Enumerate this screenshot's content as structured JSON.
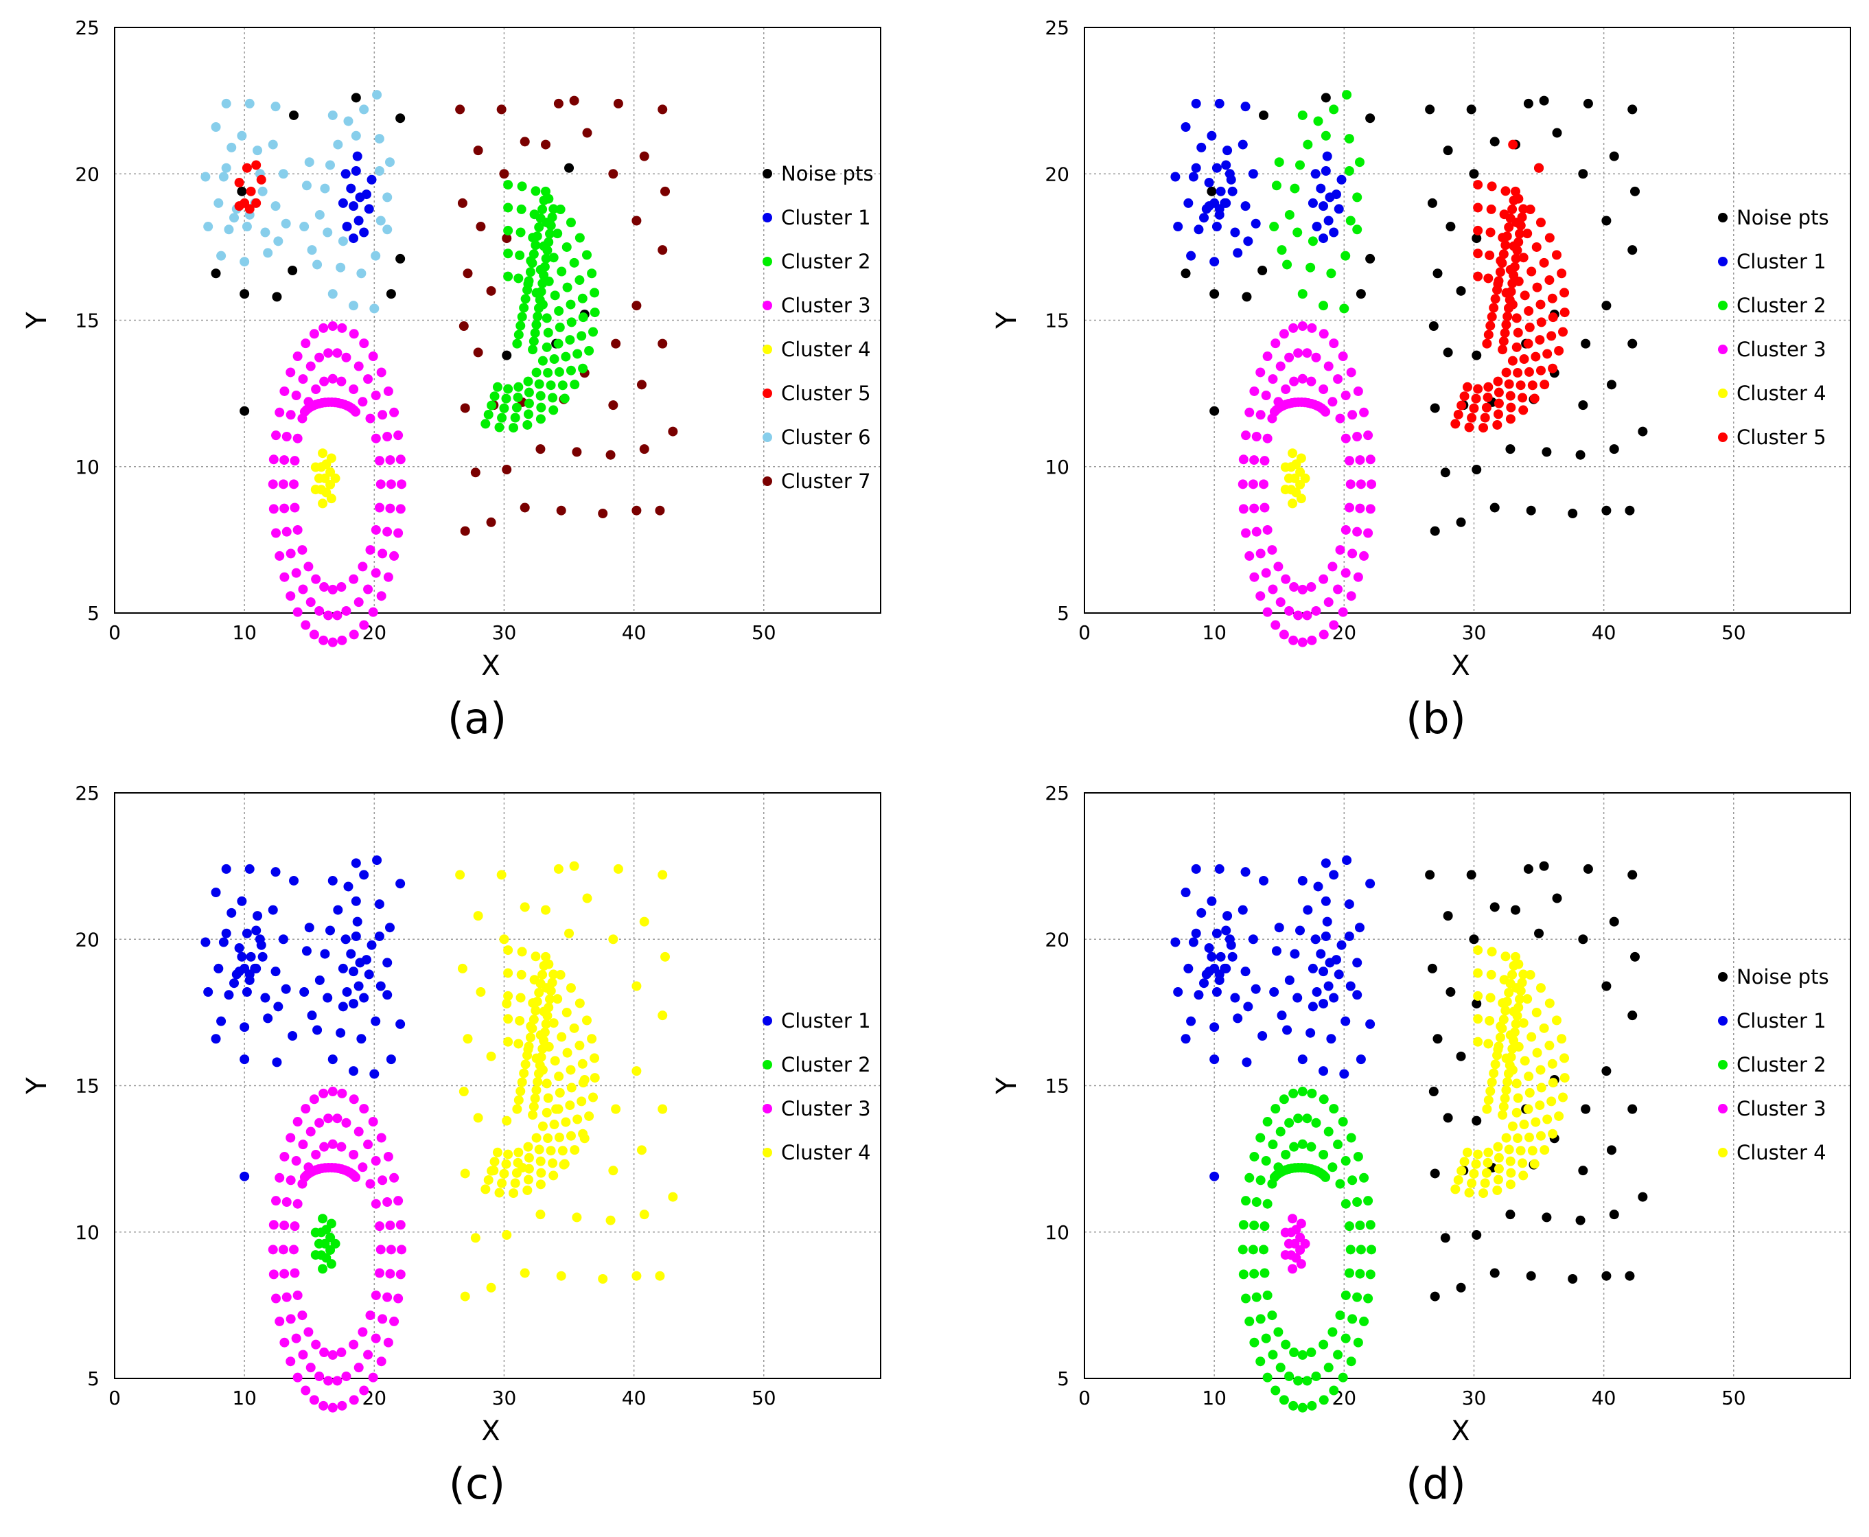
{
  "chart_data": [
    {
      "type": "scatter",
      "panel_label": "(a)",
      "xlabel": "X",
      "ylabel": "Y",
      "xlim": [
        0,
        59
      ],
      "ylim": [
        5,
        25
      ],
      "xticks": [
        "0",
        "10",
        "20",
        "30",
        "40",
        "50"
      ],
      "yticks": [
        "5",
        "10",
        "15",
        "20",
        "25"
      ],
      "grid": true,
      "legend_position": "right",
      "series": [
        {
          "name": "Noise pts",
          "color": "#000000"
        },
        {
          "name": "Cluster  1",
          "color": "#0000ee"
        },
        {
          "name": "Cluster  2",
          "color": "#00ee00"
        },
        {
          "name": "Cluster  3",
          "color": "#ff00ff"
        },
        {
          "name": "Cluster  4",
          "color": "#ffff00"
        },
        {
          "name": "Cluster  5",
          "color": "#ff0000"
        },
        {
          "name": "Cluster  6",
          "color": "#87ceeb"
        },
        {
          "name": "Cluster  7",
          "color": "#7a0000"
        }
      ],
      "region_map": {
        "LN": 0,
        "RN": 0,
        "LBL": 6,
        "LBC": 1,
        "LBR": 6,
        "LRED": 5,
        "RIGHT": 7,
        "MOON": 2,
        "RING": 3,
        "CORE": 4
      }
    },
    {
      "type": "scatter",
      "panel_label": "(b)",
      "xlabel": "X",
      "ylabel": "Y",
      "xlim": [
        0,
        59
      ],
      "ylim": [
        5,
        25
      ],
      "xticks": [
        "0",
        "10",
        "20",
        "30",
        "40",
        "50"
      ],
      "yticks": [
        "5",
        "10",
        "15",
        "20",
        "25"
      ],
      "grid": true,
      "legend_position": "right",
      "series": [
        {
          "name": "Noise pts",
          "color": "#000000"
        },
        {
          "name": "Cluster  1",
          "color": "#0000ee"
        },
        {
          "name": "Cluster  2",
          "color": "#00ee00"
        },
        {
          "name": "Cluster  3",
          "color": "#ff00ff"
        },
        {
          "name": "Cluster  4",
          "color": "#ffff00"
        },
        {
          "name": "Cluster  5",
          "color": "#ff0000"
        }
      ],
      "region_map": {
        "LN": 0,
        "RN": 0,
        "LBL": 1,
        "LBC": 1,
        "LBR": 2,
        "LRED": 1,
        "RIGHT": 0,
        "MOON": 5,
        "RING": 3,
        "CORE": 4
      },
      "extra_points": [
        {
          "x": 33.0,
          "y": 21.0,
          "series": 5
        },
        {
          "x": 35.0,
          "y": 20.2,
          "series": 5
        }
      ]
    },
    {
      "type": "scatter",
      "panel_label": "(c)",
      "xlabel": "X",
      "ylabel": "Y",
      "xlim": [
        0,
        59
      ],
      "ylim": [
        5,
        25
      ],
      "xticks": [
        "0",
        "10",
        "20",
        "30",
        "40",
        "50"
      ],
      "yticks": [
        "5",
        "10",
        "15",
        "20",
        "25"
      ],
      "grid": true,
      "legend_position": "right",
      "series": [
        {
          "name": "Cluster  1",
          "color": "#0000ee"
        },
        {
          "name": "Cluster  2",
          "color": "#00ee00"
        },
        {
          "name": "Cluster  3",
          "color": "#ff00ff"
        },
        {
          "name": "Cluster  4",
          "color": "#ffff00"
        }
      ],
      "region_map": {
        "LN": 0,
        "RN": 3,
        "LBL": 0,
        "LBC": 0,
        "LBR": 0,
        "LRED": 0,
        "RIGHT": 3,
        "MOON": 3,
        "RING": 2,
        "CORE": 1
      }
    },
    {
      "type": "scatter",
      "panel_label": "(d)",
      "xlabel": "X",
      "ylabel": "Y",
      "xlim": [
        0,
        59
      ],
      "ylim": [
        5,
        25
      ],
      "xticks": [
        "0",
        "10",
        "20",
        "30",
        "40",
        "50"
      ],
      "yticks": [
        "5",
        "10",
        "15",
        "20",
        "25"
      ],
      "grid": true,
      "legend_position": "right",
      "series": [
        {
          "name": "Noise pts",
          "color": "#000000"
        },
        {
          "name": "Cluster  1",
          "color": "#0000ee"
        },
        {
          "name": "Cluster  2",
          "color": "#00ee00"
        },
        {
          "name": "Cluster  3",
          "color": "#ff00ff"
        },
        {
          "name": "Cluster  4",
          "color": "#ffff00"
        }
      ],
      "region_map": {
        "LN": 1,
        "RN": 0,
        "LBL": 1,
        "LBC": 1,
        "LBR": 1,
        "LRED": 1,
        "RIGHT": 0,
        "MOON": 4,
        "RING": 2,
        "CORE": 3
      }
    }
  ],
  "points": {
    "LN": [
      [
        13.8,
        22.0
      ],
      [
        18.6,
        22.6
      ],
      [
        22.0,
        21.9
      ],
      [
        9.8,
        19.4
      ],
      [
        7.8,
        16.6
      ],
      [
        10.0,
        15.9
      ],
      [
        12.5,
        15.8
      ],
      [
        13.7,
        16.7
      ],
      [
        21.3,
        15.9
      ],
      [
        22.0,
        17.1
      ],
      [
        10.0,
        11.9
      ]
    ],
    "RN": [
      [
        35.0,
        20.2
      ],
      [
        36.2,
        15.2
      ],
      [
        34.0,
        14.2
      ],
      [
        30.2,
        13.8
      ]
    ],
    "LBL": [
      [
        8.6,
        22.4
      ],
      [
        10.4,
        22.4
      ],
      [
        12.4,
        22.3
      ],
      [
        7.8,
        21.6
      ],
      [
        9.0,
        20.9
      ],
      [
        11.0,
        20.8
      ],
      [
        12.2,
        21.0
      ],
      [
        7.0,
        19.9
      ],
      [
        8.4,
        19.9
      ],
      [
        11.2,
        20.0
      ],
      [
        13.0,
        20.0
      ],
      [
        8.0,
        19.0
      ],
      [
        9.4,
        18.8
      ],
      [
        10.8,
        19.0
      ],
      [
        12.4,
        18.9
      ],
      [
        7.2,
        18.2
      ],
      [
        8.8,
        18.1
      ],
      [
        10.2,
        18.2
      ],
      [
        11.6,
        18.0
      ],
      [
        13.2,
        18.3
      ],
      [
        8.2,
        17.2
      ],
      [
        10.0,
        17.0
      ],
      [
        11.8,
        17.3
      ],
      [
        12.6,
        17.7
      ],
      [
        9.2,
        18.5
      ],
      [
        11.4,
        19.4
      ],
      [
        10.4,
        18.6
      ],
      [
        8.6,
        20.2
      ],
      [
        9.8,
        21.3
      ]
    ],
    "LBC": [
      [
        17.8,
        20.0
      ],
      [
        18.6,
        20.1
      ],
      [
        19.8,
        19.8
      ],
      [
        18.2,
        19.5
      ],
      [
        19.4,
        19.3
      ],
      [
        17.6,
        19.0
      ],
      [
        18.4,
        18.9
      ],
      [
        19.6,
        18.8
      ],
      [
        18.8,
        18.4
      ],
      [
        17.9,
        18.2
      ],
      [
        19.2,
        18.0
      ],
      [
        18.4,
        17.8
      ],
      [
        18.9,
        19.2
      ],
      [
        18.7,
        20.6
      ]
    ],
    "LBR": [
      [
        16.8,
        22.0
      ],
      [
        18.0,
        21.8
      ],
      [
        19.2,
        22.2
      ],
      [
        20.2,
        22.7
      ],
      [
        17.2,
        21.0
      ],
      [
        18.6,
        21.3
      ],
      [
        20.4,
        21.2
      ],
      [
        15.0,
        20.4
      ],
      [
        16.6,
        20.3
      ],
      [
        20.4,
        20.1
      ],
      [
        21.2,
        20.4
      ],
      [
        14.8,
        19.6
      ],
      [
        16.2,
        19.5
      ],
      [
        21.0,
        19.2
      ],
      [
        15.8,
        18.6
      ],
      [
        20.5,
        18.4
      ],
      [
        14.6,
        18.2
      ],
      [
        16.4,
        18.0
      ],
      [
        21.0,
        18.1
      ],
      [
        15.6,
        16.9
      ],
      [
        17.4,
        16.8
      ],
      [
        19.0,
        16.6
      ],
      [
        20.1,
        17.2
      ],
      [
        16.8,
        15.9
      ],
      [
        18.4,
        15.5
      ],
      [
        20.0,
        15.4
      ],
      [
        17.6,
        17.7
      ],
      [
        15.2,
        17.4
      ]
    ],
    "LRED": [
      [
        10.2,
        20.2
      ],
      [
        10.9,
        20.3
      ],
      [
        9.6,
        19.7
      ],
      [
        11.3,
        19.8
      ],
      [
        10.5,
        19.4
      ],
      [
        10.0,
        19.0
      ],
      [
        10.9,
        19.0
      ],
      [
        9.6,
        18.9
      ],
      [
        10.4,
        18.8
      ]
    ],
    "RIGHT": [
      [
        26.6,
        22.2
      ],
      [
        29.8,
        22.2
      ],
      [
        34.2,
        22.4
      ],
      [
        35.4,
        22.5
      ],
      [
        38.8,
        22.4
      ],
      [
        42.2,
        22.2
      ],
      [
        36.4,
        21.4
      ],
      [
        28.0,
        20.8
      ],
      [
        31.6,
        21.1
      ],
      [
        33.2,
        21.0
      ],
      [
        40.8,
        20.6
      ],
      [
        30.0,
        20.0
      ],
      [
        38.4,
        20.0
      ],
      [
        26.8,
        19.0
      ],
      [
        42.4,
        19.4
      ],
      [
        28.2,
        18.2
      ],
      [
        30.2,
        17.8
      ],
      [
        40.2,
        18.4
      ],
      [
        42.2,
        17.4
      ],
      [
        27.2,
        16.6
      ],
      [
        29.0,
        16.0
      ],
      [
        40.2,
        15.5
      ],
      [
        26.9,
        14.8
      ],
      [
        28.0,
        13.9
      ],
      [
        38.6,
        14.2
      ],
      [
        42.2,
        14.2
      ],
      [
        36.2,
        13.2
      ],
      [
        27.0,
        12.0
      ],
      [
        29.2,
        12.1
      ],
      [
        31.4,
        12.2
      ],
      [
        34.6,
        12.3
      ],
      [
        38.4,
        12.1
      ],
      [
        40.6,
        12.8
      ],
      [
        32.8,
        10.6
      ],
      [
        35.6,
        10.5
      ],
      [
        38.2,
        10.4
      ],
      [
        40.8,
        10.6
      ],
      [
        43.0,
        11.2
      ],
      [
        27.8,
        9.8
      ],
      [
        30.2,
        9.9
      ],
      [
        27.0,
        7.8
      ],
      [
        29.0,
        8.1
      ],
      [
        31.6,
        8.6
      ],
      [
        34.4,
        8.5
      ],
      [
        37.6,
        8.4
      ],
      [
        40.2,
        8.5
      ],
      [
        42.0,
        8.5
      ]
    ]
  }
}
